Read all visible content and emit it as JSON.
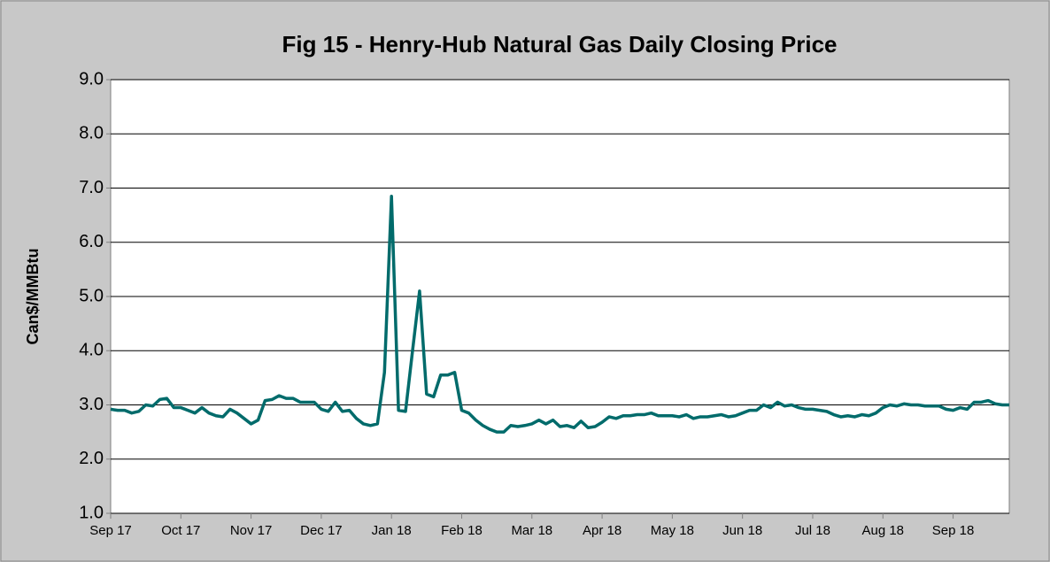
{
  "chart_data": {
    "type": "line",
    "title": "Fig  15 - Henry-Hub Natural Gas Daily Closing Price",
    "y_label": "Can$/MMBtu",
    "categories": [
      "Sep 17",
      null,
      null,
      null,
      null,
      null,
      null,
      null,
      null,
      null,
      "Oct 17",
      null,
      null,
      null,
      null,
      null,
      null,
      null,
      null,
      null,
      "Nov 17",
      null,
      null,
      null,
      null,
      null,
      null,
      null,
      null,
      null,
      "Dec 17",
      null,
      null,
      null,
      null,
      null,
      null,
      null,
      null,
      null,
      "Jan 18",
      null,
      null,
      null,
      null,
      null,
      null,
      null,
      null,
      null,
      "Feb 18",
      null,
      null,
      null,
      null,
      null,
      null,
      null,
      null,
      null,
      "Mar 18",
      null,
      null,
      null,
      null,
      null,
      null,
      null,
      null,
      null,
      "Apr 18",
      null,
      null,
      null,
      null,
      null,
      null,
      null,
      null,
      null,
      "May 18",
      null,
      null,
      null,
      null,
      null,
      null,
      null,
      null,
      null,
      "Jun 18",
      null,
      null,
      null,
      null,
      null,
      null,
      null,
      null,
      null,
      "Jul 18",
      null,
      null,
      null,
      null,
      null,
      null,
      null,
      null,
      null,
      "Aug 18",
      null,
      null,
      null,
      null,
      null,
      null,
      null,
      null,
      null,
      "Sep 18",
      null,
      null,
      null,
      null,
      null,
      null,
      null,
      null
    ],
    "series": [
      {
        "name": "Henry-Hub",
        "color": "#006b6b",
        "values": [
          2.92,
          2.9,
          2.9,
          2.85,
          2.88,
          3.0,
          2.98,
          3.1,
          3.12,
          2.95,
          2.95,
          2.9,
          2.85,
          2.95,
          2.85,
          2.8,
          2.78,
          2.92,
          2.85,
          2.75,
          2.65,
          2.72,
          3.08,
          3.1,
          3.17,
          3.12,
          3.12,
          3.05,
          3.05,
          3.05,
          2.92,
          2.88,
          3.05,
          2.88,
          2.9,
          2.75,
          2.65,
          2.62,
          2.65,
          3.6,
          6.85,
          2.9,
          2.88,
          4.0,
          5.1,
          3.2,
          3.15,
          3.55,
          3.55,
          3.6,
          2.9,
          2.85,
          2.72,
          2.62,
          2.55,
          2.5,
          2.5,
          2.62,
          2.6,
          2.62,
          2.65,
          2.72,
          2.65,
          2.72,
          2.6,
          2.62,
          2.58,
          2.7,
          2.58,
          2.6,
          2.68,
          2.78,
          2.75,
          2.8,
          2.8,
          2.82,
          2.82,
          2.85,
          2.8,
          2.8,
          2.8,
          2.78,
          2.82,
          2.75,
          2.78,
          2.78,
          2.8,
          2.82,
          2.78,
          2.8,
          2.85,
          2.9,
          2.9,
          3.0,
          2.95,
          3.05,
          2.98,
          3.0,
          2.95,
          2.92,
          2.92,
          2.9,
          2.88,
          2.82,
          2.78,
          2.8,
          2.78,
          2.82,
          2.8,
          2.85,
          2.95,
          3.0,
          2.98,
          3.02,
          3.0,
          3.0,
          2.98,
          2.98,
          2.98,
          2.92,
          2.9,
          2.95,
          2.92,
          3.05,
          3.05,
          3.08,
          3.02,
          3.0,
          3.0
        ]
      }
    ],
    "ylim": [
      1,
      9
    ],
    "yticks": [
      {
        "value": 1,
        "label": "1.0"
      },
      {
        "value": 2,
        "label": "2.0"
      },
      {
        "value": 3,
        "label": "3.0"
      },
      {
        "value": 4,
        "label": "4.0"
      },
      {
        "value": 5,
        "label": "5.0"
      },
      {
        "value": 6,
        "label": "6.0"
      },
      {
        "value": 7,
        "label": "7.0"
      },
      {
        "value": 8,
        "label": "8.0"
      },
      {
        "value": 9,
        "label": "9.0"
      }
    ],
    "grid": true
  }
}
